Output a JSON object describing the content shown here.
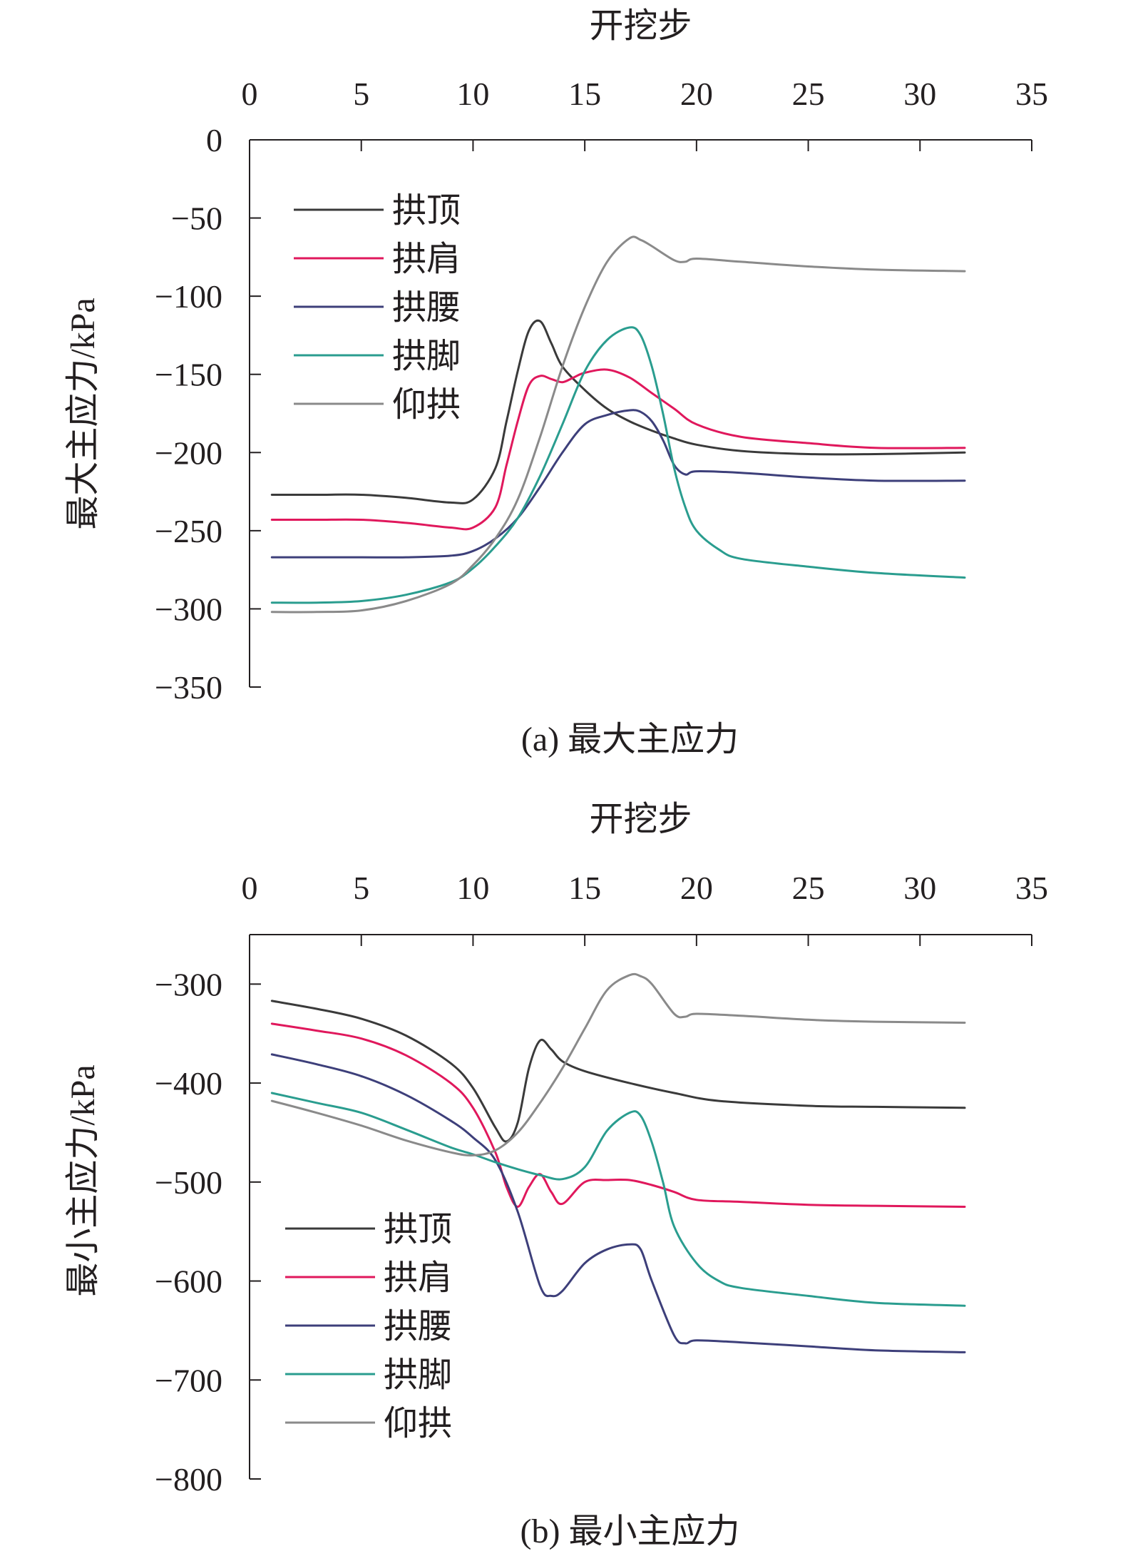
{
  "chart_data": [
    {
      "type": "line",
      "title": "",
      "caption": "(a) 最大主应力",
      "xlabel": "开挖步",
      "ylabel": "最大主应力/kPa",
      "xaxis_position": "top",
      "xlim": [
        0,
        35
      ],
      "ylim": [
        -350,
        0
      ],
      "xticks": [
        0,
        5,
        10,
        15,
        20,
        25,
        30,
        35
      ],
      "yticks": [
        0,
        -50,
        -100,
        -150,
        -200,
        -250,
        -300,
        -350
      ],
      "grid": false,
      "legend_position": "top-left",
      "series": [
        {
          "name": "拱顶",
          "color": "#3a3a3a",
          "x": [
            1,
            3,
            5,
            7,
            9,
            10,
            11,
            11.5,
            12,
            12.5,
            13,
            13.5,
            14,
            15,
            16,
            17,
            18,
            19,
            20,
            22,
            25,
            28,
            32
          ],
          "y": [
            -227,
            -227,
            -227,
            -229,
            -232,
            -230,
            -210,
            -180,
            -148,
            -122,
            -116,
            -130,
            -145,
            -160,
            -172,
            -180,
            -186,
            -191,
            -195,
            -199,
            -201,
            -201,
            -200
          ]
        },
        {
          "name": "拱肩",
          "color": "#e0185c",
          "x": [
            1,
            3,
            5,
            7,
            9,
            10,
            11,
            11.5,
            12,
            12.5,
            13,
            13.5,
            14,
            14.5,
            15,
            16,
            17,
            18,
            19,
            20,
            22,
            25,
            28,
            32
          ],
          "y": [
            -243,
            -243,
            -243,
            -245,
            -248,
            -248,
            -235,
            -208,
            -180,
            -157,
            -151,
            -153,
            -155,
            -152,
            -149,
            -147,
            -152,
            -162,
            -172,
            -182,
            -190,
            -194,
            -197,
            -197
          ]
        },
        {
          "name": "拱腰",
          "color": "#3d3f7a",
          "x": [
            1,
            3,
            5,
            7,
            9,
            10,
            11,
            12,
            13,
            14,
            15,
            16,
            17,
            17.5,
            18,
            18.5,
            19,
            19.5,
            20,
            22,
            25,
            28,
            32
          ],
          "y": [
            -267,
            -267,
            -267,
            -267,
            -266,
            -263,
            -255,
            -242,
            -222,
            -200,
            -182,
            -176,
            -173,
            -174,
            -180,
            -192,
            -208,
            -214,
            -212,
            -213,
            -216,
            -218,
            -218
          ]
        },
        {
          "name": "拱脚",
          "color": "#2a9d8f",
          "x": [
            1,
            3,
            5,
            7,
            9,
            10,
            11,
            12,
            13,
            14,
            15,
            16,
            17,
            17.5,
            18,
            18.5,
            19,
            19.5,
            20,
            21,
            22,
            25,
            28,
            32
          ],
          "y": [
            -296,
            -296,
            -295,
            -291,
            -283,
            -274,
            -260,
            -242,
            -215,
            -182,
            -148,
            -128,
            -120,
            -125,
            -145,
            -175,
            -210,
            -235,
            -250,
            -262,
            -268,
            -273,
            -277,
            -280
          ]
        },
        {
          "name": "仰拱",
          "color": "#8a8a8a",
          "x": [
            1,
            3,
            5,
            7,
            9,
            10,
            11,
            12,
            13,
            14,
            15,
            16,
            17,
            17.5,
            18,
            19,
            19.5,
            20,
            22,
            25,
            28,
            32
          ],
          "y": [
            -302,
            -302,
            -301,
            -295,
            -284,
            -272,
            -255,
            -230,
            -190,
            -145,
            -107,
            -78,
            -63,
            -64,
            -68,
            -77,
            -78,
            -76,
            -78,
            -81,
            -83,
            -84
          ]
        }
      ]
    },
    {
      "type": "line",
      "title": "",
      "caption": "(b) 最小主应力",
      "xlabel": "开挖步",
      "ylabel": "最小主应力/kPa",
      "xaxis_position": "top",
      "xlim": [
        0,
        35
      ],
      "ylim": [
        -800,
        -250
      ],
      "xticks": [
        0,
        5,
        10,
        15,
        20,
        25,
        30,
        35
      ],
      "yticks": [
        -300,
        -400,
        -500,
        -600,
        -700,
        -800
      ],
      "grid": false,
      "legend_position": "bottom-left",
      "series": [
        {
          "name": "拱顶",
          "color": "#3a3a3a",
          "x": [
            1,
            3,
            5,
            7,
            9,
            10,
            11,
            11.5,
            12,
            12.5,
            13,
            13.5,
            14,
            15,
            17,
            19,
            21,
            25,
            28,
            32
          ],
          "y": [
            -317,
            -325,
            -335,
            -352,
            -380,
            -405,
            -445,
            -459,
            -440,
            -385,
            -357,
            -366,
            -378,
            -388,
            -400,
            -410,
            -418,
            -423,
            -424,
            -425
          ]
        },
        {
          "name": "拱肩",
          "color": "#e0185c",
          "x": [
            1,
            3,
            5,
            7,
            9,
            10,
            11,
            11.5,
            12,
            12.5,
            13,
            13.5,
            14,
            15,
            16,
            17,
            18,
            19,
            20,
            22,
            25,
            28,
            32
          ],
          "y": [
            -340,
            -347,
            -355,
            -372,
            -400,
            -425,
            -470,
            -505,
            -525,
            -505,
            -492,
            -510,
            -522,
            -500,
            -498,
            -498,
            -503,
            -510,
            -518,
            -520,
            -523,
            -524,
            -525
          ]
        },
        {
          "name": "拱腰",
          "color": "#3d3f7a",
          "x": [
            1,
            3,
            5,
            7,
            9,
            10,
            11,
            12,
            13,
            13.5,
            14,
            15,
            16,
            17,
            17.5,
            18,
            19,
            19.5,
            20,
            22,
            25,
            28,
            32
          ],
          "y": [
            -371,
            -381,
            -393,
            -412,
            -438,
            -455,
            -478,
            -530,
            -605,
            -615,
            -610,
            -582,
            -568,
            -563,
            -568,
            -600,
            -655,
            -663,
            -660,
            -662,
            -666,
            -670,
            -672
          ]
        },
        {
          "name": "拱脚",
          "color": "#2a9d8f",
          "x": [
            1,
            3,
            5,
            7,
            9,
            10,
            11,
            12,
            13,
            14,
            15,
            16,
            17,
            17.5,
            18,
            18.5,
            19,
            20,
            21,
            22,
            25,
            28,
            32
          ],
          "y": [
            -410,
            -420,
            -430,
            -447,
            -465,
            -472,
            -480,
            -487,
            -493,
            -497,
            -485,
            -448,
            -430,
            -433,
            -460,
            -500,
            -545,
            -582,
            -600,
            -607,
            -615,
            -622,
            -625
          ]
        },
        {
          "name": "仰拱",
          "color": "#8a8a8a",
          "x": [
            1,
            3,
            5,
            7,
            9,
            10,
            11,
            12,
            13,
            14,
            15,
            16,
            17,
            17.5,
            18,
            19,
            19.5,
            20,
            22,
            25,
            28,
            32
          ],
          "y": [
            -418,
            -430,
            -443,
            -458,
            -470,
            -473,
            -468,
            -450,
            -420,
            -385,
            -345,
            -306,
            -291,
            -292,
            -300,
            -330,
            -333,
            -330,
            -332,
            -336,
            -338,
            -339
          ]
        }
      ]
    }
  ]
}
